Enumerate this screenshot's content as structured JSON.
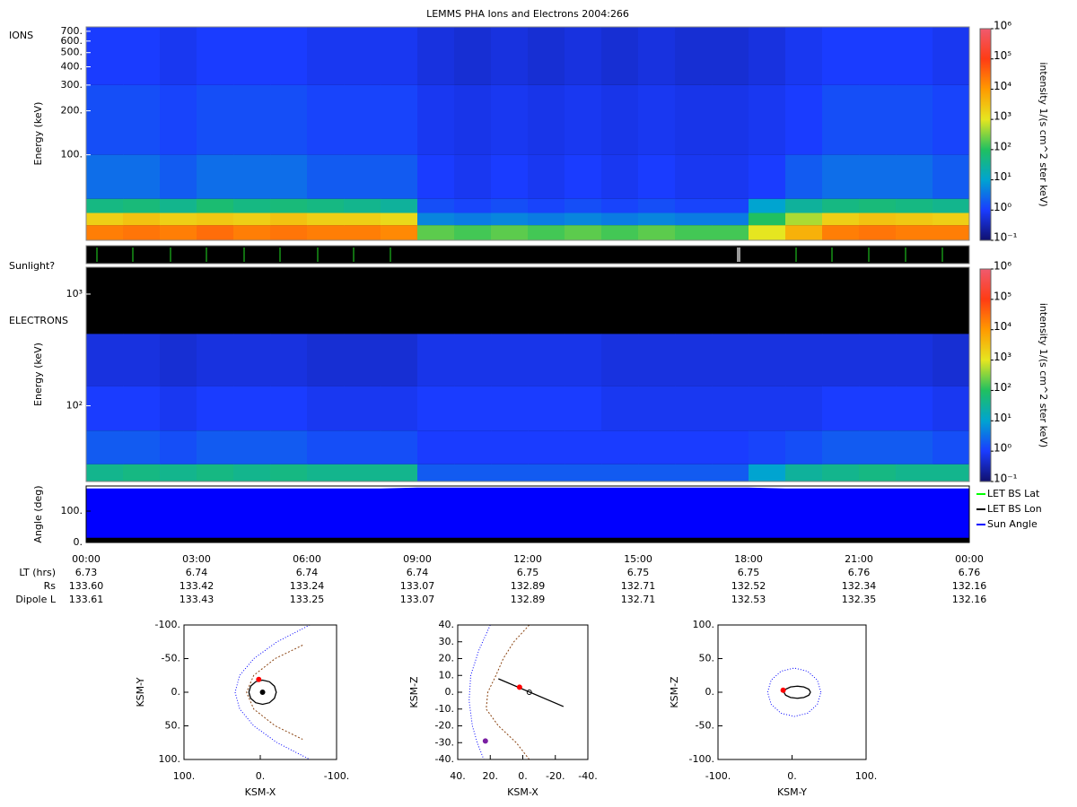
{
  "chart_data": [
    {
      "type": "heatmap",
      "title": "LEMMS PHA Ions and Electrons  2004:266",
      "label": "IONS",
      "y_label": "Energy (keV)",
      "y_scale": "log",
      "xlim": [
        0,
        24
      ],
      "ylim": [
        26,
        750
      ],
      "yticks": [
        {
          "value": 100,
          "label": "100."
        },
        {
          "value": 200,
          "label": "200."
        },
        {
          "value": 300,
          "label": "300."
        },
        {
          "value": 400,
          "label": "400."
        },
        {
          "value": 500,
          "label": "500."
        },
        {
          "value": 600,
          "label": "600."
        },
        {
          "value": 700,
          "label": "700."
        }
      ],
      "x": [
        0,
        1,
        2,
        3,
        4,
        5,
        6,
        7,
        8,
        9,
        10,
        11,
        12,
        13,
        14,
        15,
        16,
        17,
        18,
        19,
        20,
        21,
        22,
        23,
        24
      ],
      "bins": [
        26,
        33,
        40,
        50,
        100,
        300,
        750
      ],
      "values": [
        [
          20000,
          25000,
          20000,
          30000,
          20000,
          25000,
          20000,
          20000,
          15000,
          200,
          150,
          200,
          150,
          200,
          150,
          200,
          150,
          150,
          1000,
          5000,
          20000,
          25000,
          20000,
          20000
        ],
        [
          2000,
          3000,
          2000,
          2500,
          2000,
          3000,
          2000,
          2000,
          1500,
          5,
          4,
          5,
          4,
          5,
          4,
          5,
          4,
          4,
          100,
          500,
          2000,
          3000,
          2500,
          2000
        ],
        [
          50,
          60,
          40,
          70,
          50,
          60,
          50,
          40,
          30,
          1.5,
          1.2,
          1.5,
          1.2,
          1.5,
          1.2,
          1.5,
          1.2,
          1.2,
          10,
          30,
          50,
          60,
          50,
          40
        ],
        [
          3,
          3,
          2,
          3,
          3,
          3,
          2,
          2,
          2,
          1,
          0.8,
          1,
          0.8,
          1,
          0.8,
          1,
          0.8,
          0.8,
          1,
          2,
          3,
          3,
          3,
          2
        ],
        [
          1.5,
          1.5,
          1.2,
          1.5,
          1.5,
          1.5,
          1.2,
          1.2,
          1.2,
          0.8,
          0.7,
          0.8,
          0.7,
          0.8,
          0.7,
          0.8,
          0.7,
          0.7,
          0.8,
          1,
          1.5,
          1.5,
          1.5,
          1.2
        ],
        [
          1,
          1,
          0.8,
          1,
          1,
          1,
          0.8,
          0.8,
          0.8,
          0.6,
          0.5,
          0.6,
          0.5,
          0.6,
          0.5,
          0.6,
          0.5,
          0.5,
          0.6,
          0.8,
          1,
          1,
          1,
          0.8
        ]
      ],
      "clim": [
        0.1,
        1000000
      ],
      "cticks": [
        {
          "value": 0.1,
          "label": "10⁻¹"
        },
        {
          "value": 1,
          "label": "10⁰"
        },
        {
          "value": 10,
          "label": "10¹"
        },
        {
          "value": 100,
          "label": "10²"
        },
        {
          "value": 1000,
          "label": "10³"
        },
        {
          "value": 10000,
          "label": "10⁴"
        },
        {
          "value": 100000,
          "label": "10⁵"
        },
        {
          "value": 1000000,
          "label": "10⁶"
        }
      ],
      "colorbar_label": "intensity 1/(s cm^2 ster keV)",
      "colormap": [
        "#10106e",
        "#1a3cff",
        "#00a4d0",
        "#20c060",
        "#e6e620",
        "#ff9a00",
        "#ff3c14",
        "#f05a6e"
      ]
    },
    {
      "type": "heatmap",
      "label": "ELECTRONS",
      "y_label": "Energy (keV)",
      "y_scale": "log",
      "xlim": [
        0,
        24
      ],
      "ylim": [
        21,
        1740
      ],
      "yticks": [
        {
          "value": 100,
          "label": "10²"
        },
        {
          "value": 1000,
          "label": "10³"
        }
      ],
      "x": [
        0,
        1,
        2,
        3,
        4,
        5,
        6,
        7,
        8,
        9,
        10,
        11,
        12,
        13,
        14,
        15,
        16,
        17,
        18,
        19,
        20,
        21,
        22,
        23,
        24
      ],
      "bins": [
        21,
        30,
        60,
        150,
        440
      ],
      "values": [
        [
          40,
          50,
          40,
          50,
          40,
          50,
          40,
          40,
          40,
          2,
          2,
          2,
          2,
          2,
          2,
          2,
          2,
          2,
          10,
          30,
          40,
          50,
          40,
          40
        ],
        [
          2,
          2,
          1.5,
          2,
          2,
          2,
          1.5,
          1.5,
          1.5,
          1,
          1,
          1,
          1,
          1,
          1,
          1,
          1,
          1,
          1.2,
          1.5,
          2,
          2,
          2,
          1.5
        ],
        [
          1,
          1,
          0.8,
          1,
          1,
          1,
          0.8,
          0.8,
          0.8,
          1,
          1,
          1,
          1,
          1,
          0.8,
          0.8,
          0.8,
          0.8,
          0.8,
          0.8,
          1,
          1,
          1,
          0.8
        ],
        [
          0.6,
          0.6,
          0.5,
          0.6,
          0.6,
          0.6,
          0.5,
          0.5,
          0.5,
          0.7,
          0.7,
          0.7,
          0.7,
          0.7,
          0.6,
          0.6,
          0.6,
          0.6,
          0.6,
          0.6,
          0.6,
          0.6,
          0.6,
          0.5
        ]
      ],
      "clim": [
        0.1,
        1000000
      ],
      "cticks": [
        {
          "value": 0.1,
          "label": "10⁻¹"
        },
        {
          "value": 1,
          "label": "10⁰"
        },
        {
          "value": 10,
          "label": "10¹"
        },
        {
          "value": 100,
          "label": "10²"
        },
        {
          "value": 1000,
          "label": "10³"
        },
        {
          "value": 10000,
          "label": "10⁴"
        },
        {
          "value": 100000,
          "label": "10⁵"
        },
        {
          "value": 1000000,
          "label": "10⁶"
        }
      ],
      "colorbar_label": "intensity 1/(s cm^2 ster keV)",
      "colormap": [
        "#10106e",
        "#1a3cff",
        "#00a4d0",
        "#20c060",
        "#e6e620",
        "#ff9a00",
        "#ff3c14",
        "#f05a6e"
      ]
    },
    {
      "type": "line",
      "y_label": "Angle (deg)",
      "xlim": [
        0,
        24
      ],
      "ylim": [
        0,
        180
      ],
      "yticks": [
        {
          "value": 0,
          "label": "0."
        },
        {
          "value": 100,
          "label": "100."
        }
      ],
      "x": [
        0,
        1,
        2,
        3,
        4,
        5,
        6,
        7,
        8,
        9,
        10,
        11,
        12,
        13,
        14,
        15,
        16,
        17,
        18,
        19,
        20,
        21,
        22,
        23,
        24
      ],
      "xticks": [
        {
          "value": 0,
          "label": "00:00"
        },
        {
          "value": 3,
          "label": "03:00"
        },
        {
          "value": 6,
          "label": "06:00"
        },
        {
          "value": 9,
          "label": "09:00"
        },
        {
          "value": 12,
          "label": "12:00"
        },
        {
          "value": 15,
          "label": "15:00"
        },
        {
          "value": 18,
          "label": "18:00"
        },
        {
          "value": 21,
          "label": "21:00"
        },
        {
          "value": 24,
          "label": "00:00"
        }
      ],
      "legend": "right",
      "series": [
        {
          "name": "LET BS Lat",
          "color": "#00ff00",
          "style": "area",
          "values": [
            null,
            null,
            null,
            null,
            null,
            null,
            null,
            null,
            null,
            null,
            null,
            null,
            null,
            null,
            null,
            null,
            null,
            null,
            null,
            null,
            null,
            null,
            null,
            null,
            null
          ]
        },
        {
          "name": "LET BS Lon",
          "color": "#000000",
          "style": "area",
          "values": [
            15,
            15,
            15,
            15,
            15,
            15,
            15,
            15,
            15,
            15,
            15,
            15,
            15,
            15,
            15,
            15,
            15,
            15,
            15,
            15,
            15,
            15,
            15,
            15,
            15
          ]
        },
        {
          "name": "Sun Angle",
          "color": "#0000ff",
          "style": "area",
          "values": [
            172,
            172,
            172,
            172,
            172,
            172,
            172,
            172,
            172,
            175,
            175,
            175,
            175,
            175,
            175,
            175,
            175,
            175,
            175,
            172,
            172,
            172,
            172,
            172,
            172
          ]
        }
      ]
    },
    {
      "type": "line",
      "x_label": "KSM-X",
      "y_label": "KSM-Y",
      "xlim": [
        100,
        -100
      ],
      "ylim": [
        100,
        -100
      ],
      "xticks": [
        {
          "value": 100,
          "label": "100."
        },
        {
          "value": 0,
          "label": "0."
        },
        {
          "value": -100,
          "label": "-100."
        }
      ],
      "yticks": [
        {
          "value": -100,
          "label": "-100."
        },
        {
          "value": -50,
          "label": "-50."
        },
        {
          "value": 0,
          "label": "0."
        },
        {
          "value": 50,
          "label": "50."
        },
        {
          "value": 100,
          "label": "100."
        }
      ],
      "series": [
        {
          "color": "#0000ff",
          "style": "dotted",
          "x": [
            -65,
            -22,
            8.5,
            27,
            33,
            27,
            8.5,
            -22,
            -65
          ],
          "values": [
            -100,
            -75,
            -50,
            -25,
            0,
            25,
            50,
            75,
            100
          ]
        },
        {
          "color": "#8b4513",
          "style": "dashed",
          "x": [
            -55.5,
            -19.5,
            8.6,
            18,
            8.6,
            -19.5,
            -55.5
          ],
          "values": [
            -70,
            -50,
            -25,
            0,
            25,
            50,
            70
          ]
        },
        {
          "color": "#000000",
          "style": "solid",
          "x": [
            15,
            12.6,
            6,
            -3,
            -12,
            -18.6,
            -21,
            -18.6,
            -12,
            -3,
            6,
            12.6,
            15
          ],
          "values": [
            0,
            9,
            15.6,
            18,
            15.6,
            9,
            0,
            -9,
            -15.6,
            -18,
            -15.6,
            -9,
            0
          ]
        },
        {
          "color": "#000000",
          "style": "marker",
          "x": [
            -3
          ],
          "values": [
            0
          ]
        },
        {
          "color": "#ff0000",
          "style": "marker",
          "x": [
            2
          ],
          "values": [
            -19
          ]
        }
      ]
    },
    {
      "type": "line",
      "x_label": "KSM-X",
      "y_label": "KSM-Z",
      "xlim": [
        40,
        -40
      ],
      "ylim": [
        -40,
        40
      ],
      "xticks": [
        {
          "value": 40,
          "label": "40."
        },
        {
          "value": 20,
          "label": "20."
        },
        {
          "value": 0,
          "label": "0."
        },
        {
          "value": -20,
          "label": "-20."
        },
        {
          "value": -40,
          "label": "-40."
        }
      ],
      "yticks": [
        {
          "value": 40,
          "label": "40."
        },
        {
          "value": 30,
          "label": "30."
        },
        {
          "value": 20,
          "label": "20."
        },
        {
          "value": 10,
          "label": "10."
        },
        {
          "value": 0,
          "label": "0."
        },
        {
          "value": -10,
          "label": "-10."
        },
        {
          "value": -20,
          "label": "-20."
        },
        {
          "value": -30,
          "label": "-30."
        },
        {
          "value": -40,
          "label": "-40."
        }
      ],
      "series": [
        {
          "color": "#0000ff",
          "style": "dotted",
          "x": [
            20,
            27,
            32,
            33,
            31,
            28,
            24
          ],
          "values": [
            40,
            25,
            10,
            -5,
            -20,
            -30,
            -40
          ]
        },
        {
          "color": "#8b4513",
          "style": "dashed",
          "x": [
            -4,
            5.5,
            12,
            16.5,
            21.5,
            22.5,
            15,
            4,
            -4
          ],
          "values": [
            40,
            30,
            20,
            10,
            0,
            -10,
            -20,
            -30,
            -40
          ]
        },
        {
          "color": "#000000",
          "style": "solid",
          "x": [
            15,
            -25
          ],
          "values": [
            8,
            -8.5
          ]
        },
        {
          "color": "#000000",
          "style": "hollow",
          "x": [
            -4
          ],
          "values": [
            0
          ]
        },
        {
          "color": "#ff0000",
          "style": "marker",
          "x": [
            2
          ],
          "values": [
            3
          ]
        },
        {
          "color": "#7a1fa2",
          "style": "marker",
          "x": [
            23
          ],
          "values": [
            -29
          ]
        }
      ]
    },
    {
      "type": "line",
      "x_label": "KSM-Y",
      "y_label": "KSM-Z",
      "xlim": [
        -100,
        100
      ],
      "ylim": [
        -100,
        100
      ],
      "xticks": [
        {
          "value": -100,
          "label": "-100."
        },
        {
          "value": 0,
          "label": "0."
        },
        {
          "value": 100,
          "label": "100."
        }
      ],
      "yticks": [
        {
          "value": 100,
          "label": "100."
        },
        {
          "value": 50,
          "label": "50."
        },
        {
          "value": 0,
          "label": "0."
        },
        {
          "value": -50,
          "label": "-50."
        },
        {
          "value": -100,
          "label": "-100."
        }
      ],
      "series": [
        {
          "color": "#0000ff",
          "style": "dotted",
          "x": [
            39,
            34.2,
            21,
            3,
            -15,
            -28.2,
            -33,
            -28.2,
            -15,
            3,
            21,
            34.2,
            39
          ],
          "values": [
            0,
            18,
            31.2,
            36,
            31.2,
            18,
            0,
            -18,
            -31.2,
            -36,
            -31.2,
            -18,
            0
          ]
        },
        {
          "color": "#000000",
          "style": "solid",
          "x": [
            25,
            22.6,
            16,
            7,
            -2,
            -8.6,
            -11,
            -8.6,
            -2,
            7,
            16,
            22.6,
            25
          ],
          "values": [
            0,
            4.5,
            7.8,
            9,
            7.8,
            4.5,
            0,
            -4.5,
            -7.8,
            -9,
            -7.8,
            -4.5,
            0
          ]
        },
        {
          "color": "#ff0000",
          "style": "marker",
          "x": [
            -12
          ],
          "values": [
            3
          ]
        }
      ]
    }
  ],
  "sunlight": {
    "label": "Sunlight?"
  },
  "ephemeris": {
    "rows": [
      {
        "label": "LT (hrs)",
        "values": [
          "6.73",
          "6.74",
          "6.74",
          "6.74",
          "6.75",
          "6.75",
          "6.75",
          "6.76",
          "6.76"
        ]
      },
      {
        "label": "Rs",
        "values": [
          "133.60",
          "133.42",
          "133.24",
          "133.07",
          "132.89",
          "132.71",
          "132.52",
          "132.34",
          "132.16"
        ]
      },
      {
        "label": "Dipole L",
        "values": [
          "133.61",
          "133.43",
          "133.25",
          "133.07",
          "132.89",
          "132.71",
          "132.53",
          "132.35",
          "132.16"
        ]
      }
    ]
  }
}
